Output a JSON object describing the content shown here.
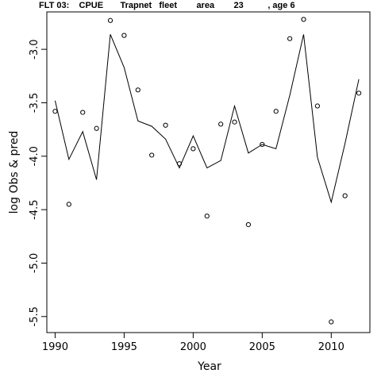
{
  "chart_data": {
    "type": "line",
    "title": "FLT 03:    CPUE       Trapnet   fleet        area        23          , age 6",
    "xlabel": "Year",
    "ylabel": "log Obs & pred",
    "xlim": [
      1989.4,
      2012.8
    ],
    "ylim": [
      -5.65,
      -2.65
    ],
    "x_ticks": [
      1990,
      1995,
      2000,
      2005,
      2010
    ],
    "x_tick_labels": [
      "1990",
      "1995",
      "2000",
      "2005",
      "2010"
    ],
    "y_ticks": [
      -5.5,
      -5.0,
      -4.5,
      -4.0,
      -3.5,
      -3.0
    ],
    "y_tick_labels": [
      "-5.5",
      "-5.0",
      "-4.5",
      "-4.0",
      "-3.5",
      "-3.0"
    ],
    "grid": false,
    "series": [
      {
        "role": "predicted",
        "style": "line",
        "x": [
          1990,
          1991,
          1992,
          1993,
          1994,
          1995,
          1996,
          1997,
          1998,
          1999,
          2000,
          2001,
          2002,
          2003,
          2004,
          2005,
          2006,
          2007,
          2008,
          2009,
          2010,
          2011,
          2012
        ],
        "y": [
          -3.48,
          -4.03,
          -3.77,
          -4.22,
          -2.86,
          -3.17,
          -3.67,
          -3.72,
          -3.84,
          -4.11,
          -3.81,
          -4.11,
          -4.04,
          -3.53,
          -3.97,
          -3.89,
          -3.93,
          -3.43,
          -2.86,
          -4.01,
          -4.43,
          -3.88,
          -3.28
        ]
      },
      {
        "role": "observed",
        "style": "points",
        "x": [
          1990,
          1991,
          1992,
          1993,
          1994,
          1995,
          1996,
          1997,
          1998,
          1999,
          2000,
          2001,
          2002,
          2003,
          2004,
          2005,
          2006,
          2007,
          2008,
          2009,
          2010,
          2011,
          2012
        ],
        "y": [
          -3.58,
          -4.45,
          -3.59,
          -3.74,
          -2.73,
          -2.87,
          -3.38,
          -3.99,
          -3.71,
          -4.07,
          -3.93,
          -4.56,
          -3.7,
          -3.68,
          -4.64,
          -3.89,
          -3.58,
          -2.9,
          -2.72,
          -3.53,
          -5.55,
          -4.37,
          -3.41
        ]
      }
    ]
  }
}
